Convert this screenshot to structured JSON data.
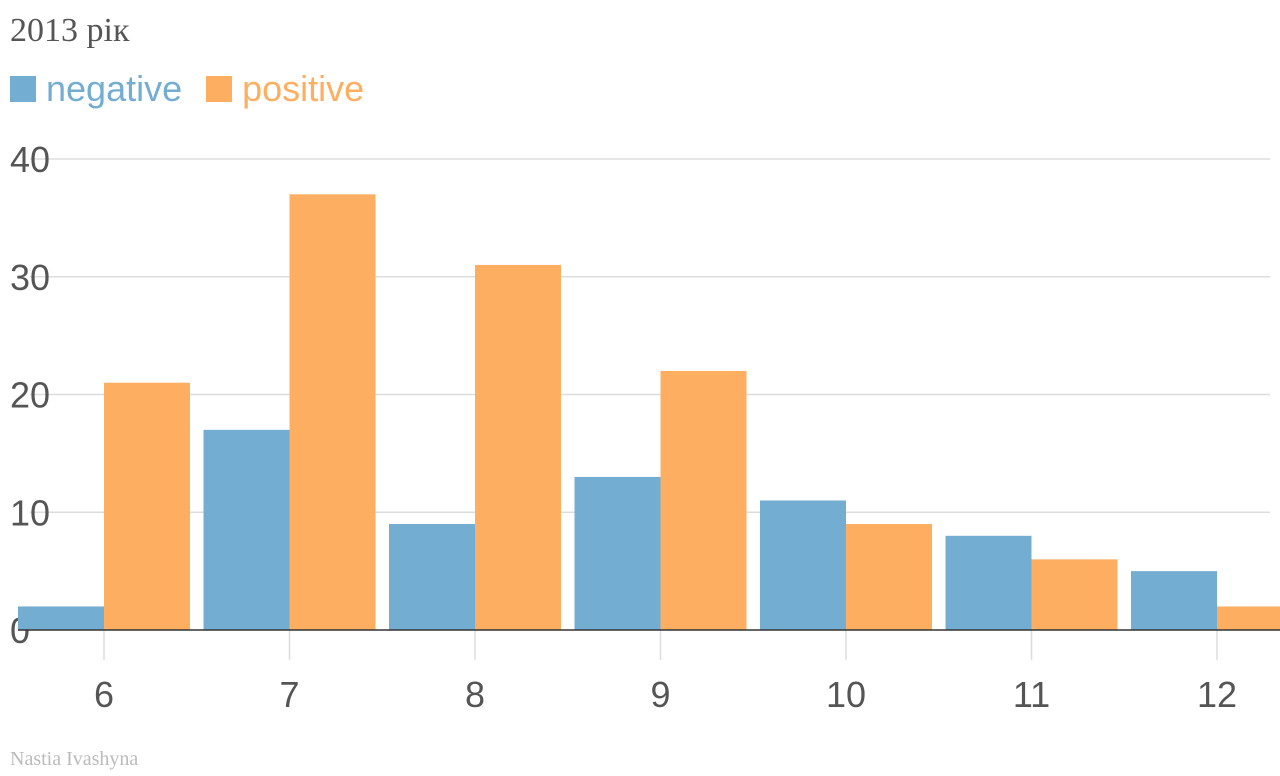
{
  "title": "2013 рік",
  "credit": "Nastia Ivashyna",
  "colors": {
    "negative": "#74adD2",
    "positive": "#fdae61",
    "grid": "#dddddd",
    "axis": "#333333",
    "text": "#555555"
  },
  "chart_data": {
    "type": "bar",
    "title": "2013 рік",
    "xlabel": "",
    "ylabel": "",
    "categories": [
      "6",
      "7",
      "8",
      "9",
      "10",
      "11",
      "12"
    ],
    "series": [
      {
        "name": "negative",
        "values": [
          2,
          17,
          9,
          13,
          11,
          8,
          5
        ]
      },
      {
        "name": "positive",
        "values": [
          21,
          37,
          31,
          22,
          9,
          6,
          2
        ]
      }
    ],
    "ylim": [
      0,
      40
    ],
    "yticks": [
      "0",
      "10",
      "20",
      "30",
      "40"
    ],
    "grid": true,
    "legend": "top-left"
  }
}
